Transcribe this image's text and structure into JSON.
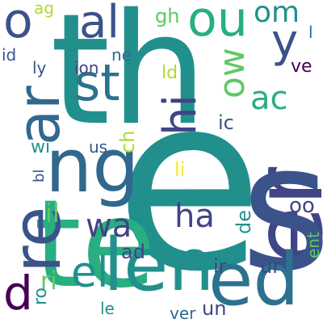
{
  "palette": {
    "deep_purple": "#440154",
    "indigo": "#3b528b",
    "slate_blue": "#414487",
    "steel_blue": "#31688e",
    "teal_blue": "#2c728e",
    "teal": "#21908d",
    "green_teal": "#28ae80",
    "green": "#5ec962",
    "light_green": "#addc30",
    "yellow": "#fde725",
    "background": "#ffffff"
  },
  "words": [
    {
      "text": "th"
    },
    {
      "text": "e"
    },
    {
      "text": "er"
    },
    {
      "text": "s"
    },
    {
      "text": "te"
    },
    {
      "text": "len"
    },
    {
      "text": "ed"
    },
    {
      "text": "ng"
    },
    {
      "text": "re"
    },
    {
      "text": "ar"
    },
    {
      "text": "st"
    },
    {
      "text": "ou"
    },
    {
      "text": "al"
    },
    {
      "text": "o"
    },
    {
      "text": "y"
    },
    {
      "text": "om"
    },
    {
      "text": "ow"
    },
    {
      "text": "ac"
    },
    {
      "text": "hi"
    },
    {
      "text": "el"
    },
    {
      "text": "ha"
    },
    {
      "text": "wa"
    },
    {
      "text": "d"
    },
    {
      "text": "gh"
    },
    {
      "text": "ld"
    },
    {
      "text": "ne"
    },
    {
      "text": "ion"
    },
    {
      "text": "ly"
    },
    {
      "text": "id"
    },
    {
      "text": "ag"
    },
    {
      "text": "ch"
    },
    {
      "text": "ic"
    },
    {
      "text": "us"
    },
    {
      "text": "wi"
    },
    {
      "text": "bl"
    },
    {
      "text": "li"
    },
    {
      "text": "il"
    },
    {
      "text": "oo"
    },
    {
      "text": "de"
    },
    {
      "text": "ad"
    },
    {
      "text": "ir"
    },
    {
      "text": "ur"
    },
    {
      "text": "ent"
    },
    {
      "text": "ri"
    },
    {
      "text": "ro"
    },
    {
      "text": "le"
    },
    {
      "text": "ver"
    },
    {
      "text": "un"
    },
    {
      "text": "ve"
    },
    {
      "text": "l"
    }
  ]
}
